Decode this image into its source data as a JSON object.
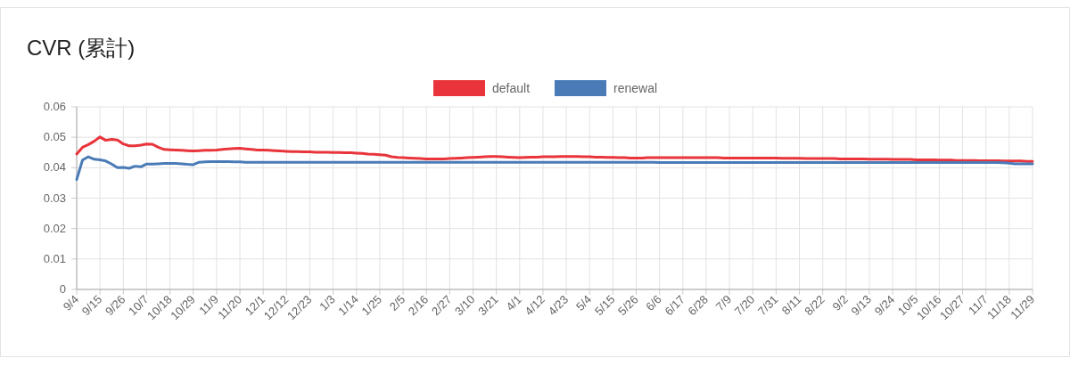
{
  "chart_data": {
    "type": "line",
    "title": "CVR (累計)",
    "legend": "top",
    "grid": true,
    "categories": [
      "9/4",
      null,
      null,
      null,
      "9/15",
      null,
      null,
      null,
      "9/26",
      null,
      null,
      null,
      "10/7",
      null,
      null,
      null,
      "10/18",
      null,
      null,
      null,
      "10/29",
      null,
      null,
      null,
      "11/9",
      null,
      null,
      null,
      "11/20",
      null,
      null,
      null,
      "12/1",
      null,
      null,
      null,
      "12/12",
      null,
      null,
      null,
      "12/23",
      null,
      null,
      null,
      "1/3",
      null,
      null,
      null,
      "1/14",
      null,
      null,
      null,
      "1/25",
      null,
      null,
      null,
      "2/5",
      null,
      null,
      null,
      "2/16",
      null,
      null,
      null,
      "2/27",
      null,
      null,
      null,
      "3/10",
      null,
      null,
      null,
      "3/21",
      null,
      null,
      null,
      "4/1",
      null,
      null,
      null,
      "4/12",
      null,
      null,
      null,
      "4/23",
      null,
      null,
      null,
      "5/4",
      null,
      null,
      null,
      "5/15",
      null,
      null,
      null,
      "5/26",
      null,
      null,
      null,
      "6/6",
      null,
      null,
      null,
      "6/17",
      null,
      null,
      null,
      "6/28",
      null,
      null,
      null,
      "7/9",
      null,
      null,
      null,
      "7/20",
      null,
      null,
      null,
      "7/31",
      null,
      null,
      null,
      "8/11",
      null,
      null,
      null,
      "8/22",
      null,
      null,
      null,
      "9/2",
      null,
      null,
      null,
      "9/13",
      null,
      null,
      null,
      "9/24",
      null,
      null,
      null,
      "10/5",
      null,
      null,
      null,
      "10/16",
      null,
      null,
      null,
      "10/27",
      null,
      null,
      null,
      "11/7",
      null,
      null,
      null,
      "11/18",
      null,
      null,
      null,
      "11/29"
    ],
    "ylim": [
      0,
      0.06
    ],
    "yticks": [
      0,
      0.01,
      0.02,
      0.03,
      0.04,
      0.05,
      0.06
    ],
    "series": [
      {
        "name": "default",
        "color": "#e8343a",
        "values": [
          0.0445,
          0.0467,
          0.0476,
          0.0487,
          0.0501,
          0.049,
          0.0493,
          0.0491,
          0.0478,
          0.0472,
          0.0472,
          0.0474,
          0.0478,
          0.0477,
          0.0467,
          0.046,
          0.0459,
          0.0458,
          0.0457,
          0.0456,
          0.0455,
          0.0456,
          0.0457,
          0.0457,
          0.0458,
          0.046,
          0.0462,
          0.0463,
          0.0464,
          0.0462,
          0.046,
          0.0458,
          0.0458,
          0.0457,
          0.0456,
          0.0455,
          0.0454,
          0.0453,
          0.0453,
          0.0452,
          0.0452,
          0.0451,
          0.0451,
          0.0451,
          0.045,
          0.045,
          0.0449,
          0.0449,
          0.0448,
          0.0447,
          0.0445,
          0.0444,
          0.0443,
          0.0441,
          0.0436,
          0.0434,
          0.0433,
          0.0432,
          0.0431,
          0.043,
          0.0429,
          0.0429,
          0.0429,
          0.0429,
          0.043,
          0.0431,
          0.0432,
          0.0433,
          0.0434,
          0.0435,
          0.0436,
          0.0437,
          0.0437,
          0.0436,
          0.0435,
          0.0434,
          0.0433,
          0.0434,
          0.0435,
          0.0435,
          0.0436,
          0.0436,
          0.0436,
          0.0437,
          0.0437,
          0.0437,
          0.0437,
          0.0436,
          0.0436,
          0.0435,
          0.0435,
          0.0434,
          0.0434,
          0.0433,
          0.0433,
          0.0432,
          0.0432,
          0.0432,
          0.0433,
          0.0433,
          0.0433,
          0.0433,
          0.0433,
          0.0433,
          0.0433,
          0.0433,
          0.0433,
          0.0433,
          0.0433,
          0.0433,
          0.0433,
          0.0432,
          0.0432,
          0.0432,
          0.0432,
          0.0432,
          0.0432,
          0.0432,
          0.0432,
          0.0432,
          0.0432,
          0.0431,
          0.0431,
          0.0431,
          0.0431,
          0.043,
          0.043,
          0.043,
          0.043,
          0.043,
          0.043,
          0.0429,
          0.0429,
          0.0429,
          0.0429,
          0.0429,
          0.0428,
          0.0428,
          0.0428,
          0.0428,
          0.0427,
          0.0427,
          0.0427,
          0.0427,
          0.0426,
          0.0426,
          0.0426,
          0.0426,
          0.0425,
          0.0425,
          0.0425,
          0.0424,
          0.0424,
          0.0424,
          0.0424,
          0.0423,
          0.0423,
          0.0423,
          0.0423,
          0.0422,
          0.0422,
          0.0422,
          0.0422,
          0.0421,
          0.0421
        ]
      },
      {
        "name": "renewal",
        "color": "#4a7bb7",
        "values": [
          0.0361,
          0.0425,
          0.0436,
          0.0428,
          0.0426,
          0.0422,
          0.0412,
          0.04,
          0.0401,
          0.0398,
          0.0405,
          0.0403,
          0.0412,
          0.0412,
          0.0413,
          0.0414,
          0.0414,
          0.0414,
          0.0413,
          0.0411,
          0.041,
          0.0418,
          0.0419,
          0.042,
          0.042,
          0.042,
          0.042,
          0.0419,
          0.0419,
          0.0418,
          0.0418,
          0.0418,
          0.0418,
          0.0418,
          0.0418,
          0.0418,
          0.0418,
          0.0418,
          0.0418,
          0.0418,
          0.0418,
          0.0418,
          0.0418,
          0.0418,
          0.0418,
          0.0418,
          0.0418,
          0.0418,
          0.0418,
          0.0418,
          0.0418,
          0.0418,
          0.0418,
          0.0418,
          0.0418,
          0.0418,
          0.0418,
          0.0418,
          0.0418,
          0.0418,
          0.0418,
          0.0418,
          0.0418,
          0.0418,
          0.0418,
          0.0418,
          0.0418,
          0.0418,
          0.0418,
          0.0418,
          0.0418,
          0.0418,
          0.0418,
          0.0418,
          0.0418,
          0.0418,
          0.0418,
          0.0418,
          0.0418,
          0.0418,
          0.0418,
          0.0418,
          0.0418,
          0.0418,
          0.0418,
          0.0418,
          0.0418,
          0.0418,
          0.0418,
          0.0418,
          0.0418,
          0.0418,
          0.0418,
          0.0418,
          0.0418,
          0.0418,
          0.0418,
          0.0418,
          0.0418,
          0.0418,
          0.0417,
          0.0417,
          0.0417,
          0.0417,
          0.0417,
          0.0417,
          0.0417,
          0.0417,
          0.0417,
          0.0417,
          0.0417,
          0.0417,
          0.0417,
          0.0417,
          0.0417,
          0.0417,
          0.0417,
          0.0417,
          0.0417,
          0.0417,
          0.0417,
          0.0417,
          0.0417,
          0.0417,
          0.0417,
          0.0417,
          0.0417,
          0.0417,
          0.0417,
          0.0417,
          0.0417,
          0.0417,
          0.0417,
          0.0417,
          0.0417,
          0.0417,
          0.0417,
          0.0417,
          0.0417,
          0.0417,
          0.0417,
          0.0417,
          0.0417,
          0.0417,
          0.0417,
          0.0417,
          0.0417,
          0.0417,
          0.0417,
          0.0417,
          0.0417,
          0.0417,
          0.0417,
          0.0417,
          0.0417,
          0.0417,
          0.0417,
          0.0417,
          0.0417,
          0.0416,
          0.0415,
          0.0413,
          0.0413,
          0.0413,
          0.0413
        ]
      }
    ]
  }
}
